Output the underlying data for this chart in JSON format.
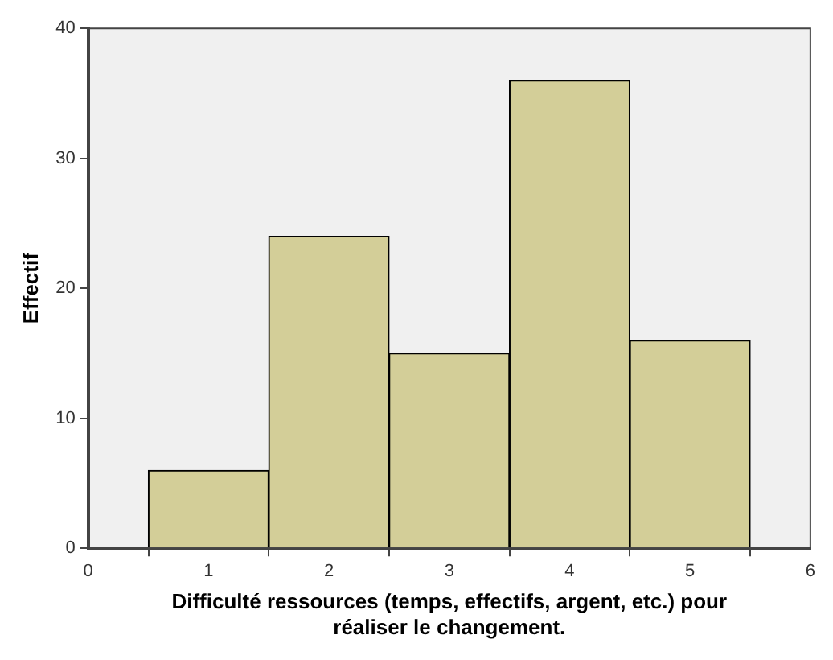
{
  "chart_data": {
    "type": "histogram",
    "xlabel": "Difficulté ressources (temps, effectifs, argent, etc.) pour réaliser le changement.",
    "ylabel": "Effectif",
    "bins": [
      0.5,
      1.5,
      2.5,
      3.5,
      4.5,
      5.5
    ],
    "values": [
      6,
      24,
      15,
      36,
      16
    ],
    "color": "#d3ce98",
    "xlim": [
      0,
      6
    ],
    "xticks": [
      0,
      1,
      2,
      3,
      4,
      5,
      6
    ],
    "ylim": [
      0,
      40
    ],
    "yticks": [
      0,
      10,
      20,
      30,
      40
    ],
    "grid": false,
    "legend": false
  }
}
